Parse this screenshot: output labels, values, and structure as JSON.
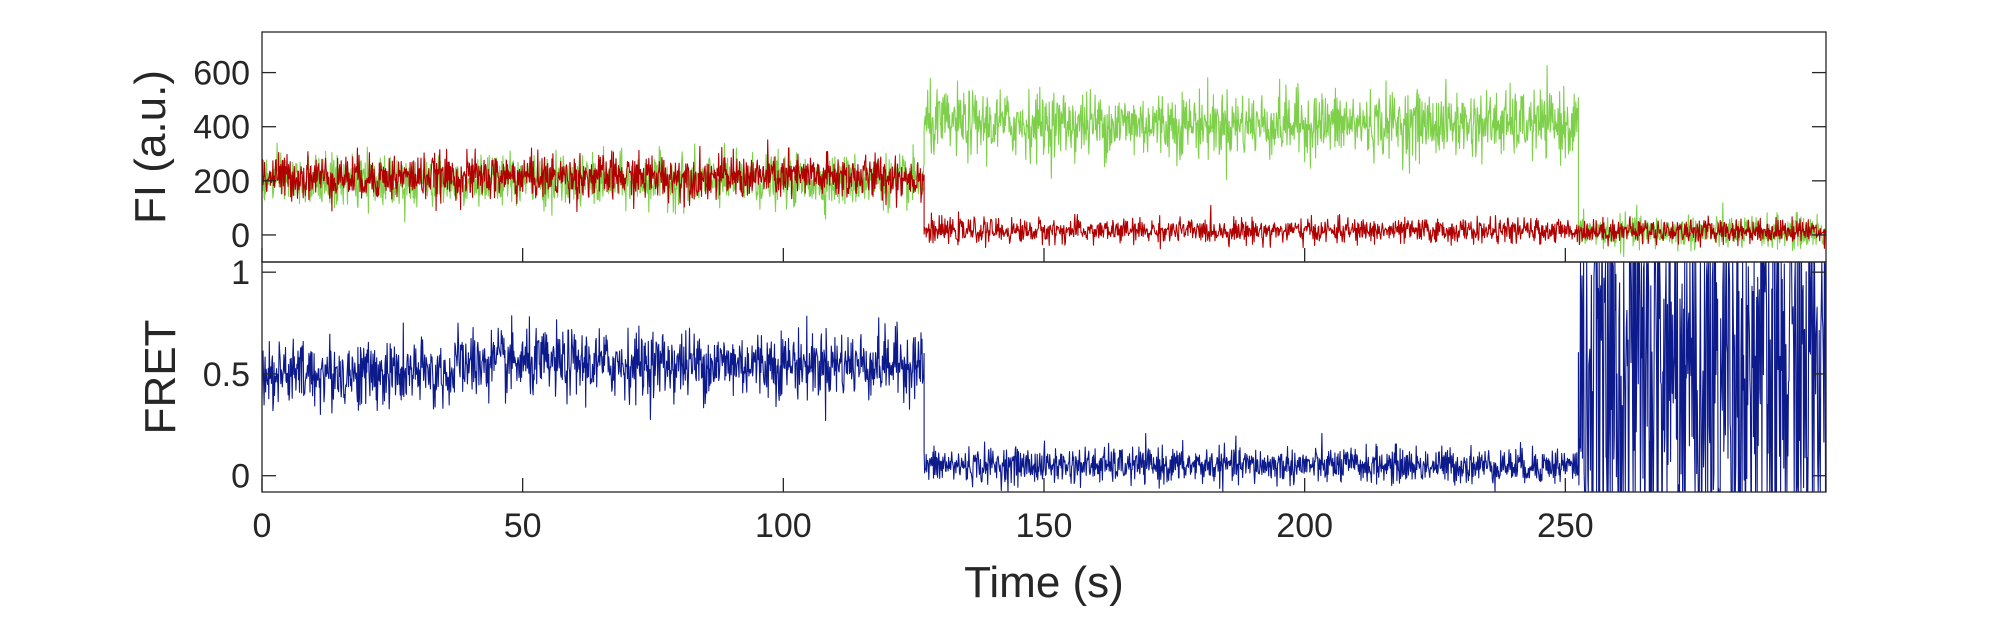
{
  "chart_data": [
    {
      "type": "line",
      "ylabel": "FI (a.u.)",
      "xlim": [
        0,
        300
      ],
      "ylim": [
        -100,
        750
      ],
      "yticks": [
        0,
        200,
        400,
        600
      ],
      "grid": false,
      "legend": "none",
      "series": [
        {
          "color": "#7ed04a",
          "sample_interval_s": 0.1,
          "segments": [
            {
              "t0": 0,
              "t1": 127,
              "mean": 200,
              "noise": 85
            },
            {
              "t0": 127,
              "t1": 252.5,
              "mean": 410,
              "noise": 110
            },
            {
              "t0": 252.5,
              "t1": 300,
              "mean": 10,
              "noise": 55
            }
          ]
        },
        {
          "color": "#b00000",
          "sample_interval_s": 0.1,
          "segments": [
            {
              "t0": 0,
              "t1": 127,
              "mean": 215,
              "noise": 75
            },
            {
              "t0": 127,
              "t1": 300,
              "mean": 15,
              "noise": 40
            }
          ]
        }
      ]
    },
    {
      "type": "line",
      "xlabel": "Time (s)",
      "ylabel": "FRET",
      "xlim": [
        0,
        300
      ],
      "ylim": [
        -0.08,
        1.05
      ],
      "xticks": [
        0,
        50,
        100,
        150,
        200,
        250
      ],
      "yticks": [
        0,
        0.5,
        1
      ],
      "grid": false,
      "legend": "none",
      "series": [
        {
          "color": "#0d1a8c",
          "sample_interval_s": 0.1,
          "segments": [
            {
              "t0": 0,
              "t1": 37,
              "mean": 0.5,
              "noise": 0.15
            },
            {
              "t0": 37,
              "t1": 127,
              "mean": 0.55,
              "noise": 0.15
            },
            {
              "t0": 127,
              "t1": 252.5,
              "mean": 0.05,
              "noise": 0.08
            },
            {
              "t0": 252.5,
              "t1": 300,
              "mean": 0.5,
              "noise": 1.2
            }
          ]
        }
      ]
    }
  ]
}
